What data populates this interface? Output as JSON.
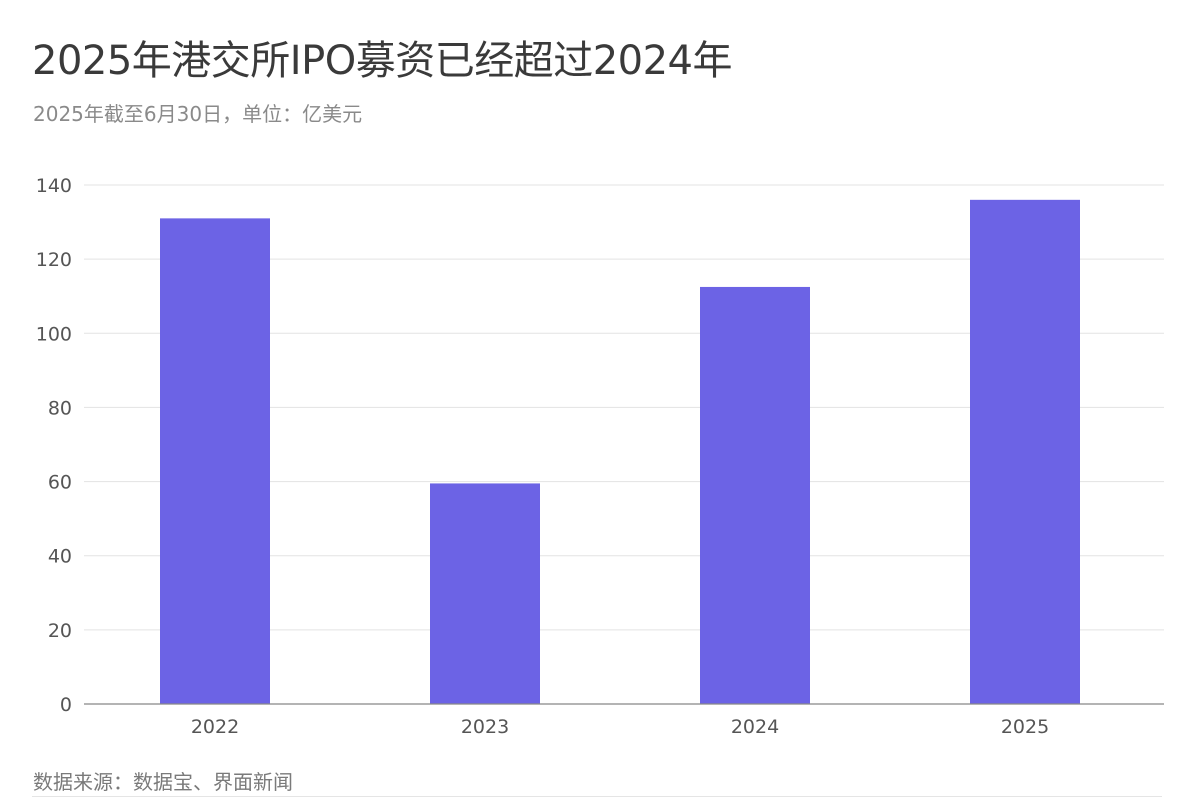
{
  "header": {
    "title": "2025年港交所IPO募资已经超过2024年",
    "subtitle": "2025年截至6月30日，单位：亿美元"
  },
  "footer": {
    "source": "数据来源：数据宝、界面新闻"
  },
  "chart_data": {
    "type": "bar",
    "title": "2025年港交所IPO募资已经超过2024年",
    "subtitle": "2025年截至6月30日，单位：亿美元",
    "categories": [
      "2022",
      "2023",
      "2024",
      "2025"
    ],
    "values": [
      131,
      59.5,
      112.5,
      136
    ],
    "ylim": [
      0,
      140
    ],
    "yticks": [
      0,
      20,
      40,
      60,
      80,
      100,
      120,
      140
    ],
    "xlabel": "",
    "ylabel": "",
    "grid": true,
    "legend": "none",
    "colors": {
      "bar": "#6c63e5",
      "grid": "#e3e3e3",
      "axis": "#888888"
    }
  }
}
